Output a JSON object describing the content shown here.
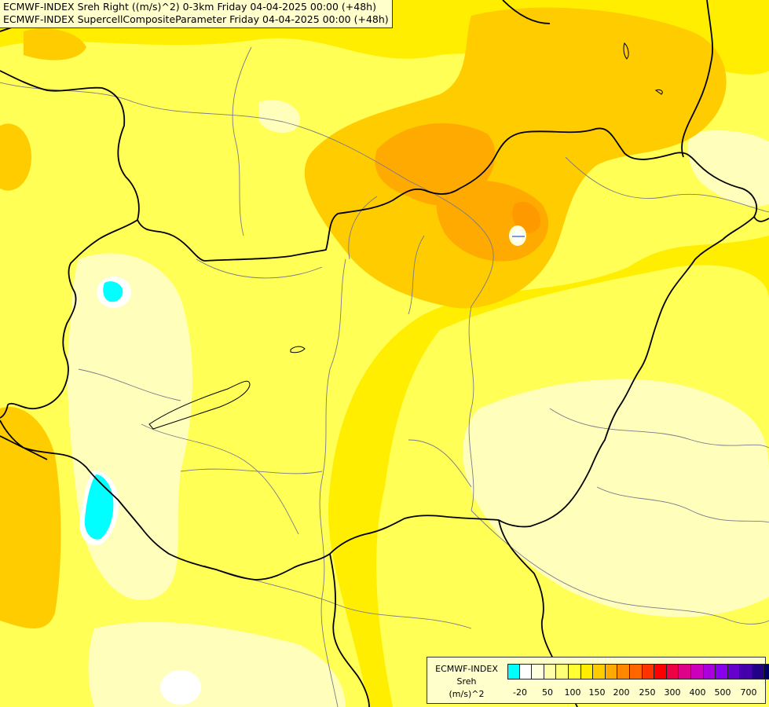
{
  "title": {
    "line1": "ECMWF-INDEX Sreh Right ((m/s)^2) 0-3km Friday 04-04-2025 00:00 (+48h)",
    "line2": "ECMWF-INDEX SupercellCompositeParameter Friday 04-04-2025 00:00 (+48h)"
  },
  "legend": {
    "line1": "ECMWF-INDEX",
    "line2": "Sreh",
    "line3": "(m/s)^2",
    "colors": [
      "#00ffff",
      "#ffffff",
      "#ffffdd",
      "#ffffaa",
      "#ffff77",
      "#ffff33",
      "#ffee00",
      "#ffcc00",
      "#ffaa00",
      "#ff8800",
      "#ff6600",
      "#ff3300",
      "#ff0000",
      "#ee0044",
      "#dd0088",
      "#cc00bb",
      "#aa00dd",
      "#8800ee",
      "#6600cc",
      "#4400aa",
      "#220088",
      "#000066"
    ],
    "tick_labels": [
      "-20",
      "50",
      "100",
      "150",
      "200",
      "250",
      "300",
      "400",
      "500",
      "700"
    ]
  },
  "map_colors": {
    "base": "#ffee00",
    "light": "#ffff66",
    "pale": "#ffffbb",
    "orange": "#ffcc00",
    "dark_orange": "#ffaa00",
    "cyan": "#00ffff",
    "border": "#000000",
    "river": "#7a7a8a"
  }
}
